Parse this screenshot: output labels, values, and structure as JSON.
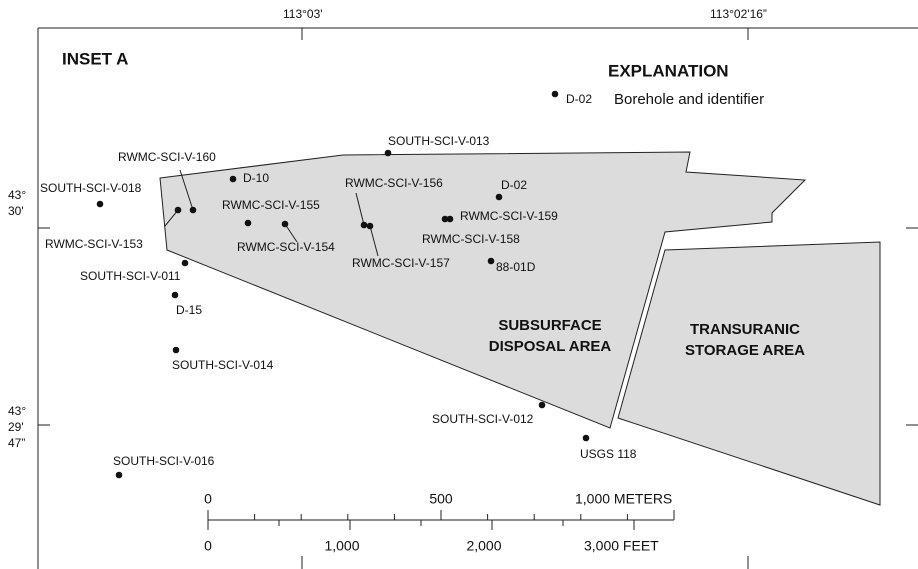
{
  "inset_title": "INSET A",
  "longitudes": [
    "113°03'",
    "113°02'16”"
  ],
  "latitudes": [
    {
      "lines": [
        "43°",
        "30'"
      ]
    },
    {
      "lines": [
        "43°",
        "29'",
        "47”"
      ]
    }
  ],
  "explanation": {
    "title": "EXPLANATION",
    "symbol_label": "D-02",
    "text": "Borehole and identifier"
  },
  "areas": [
    {
      "lines": [
        "SUBSURFACE",
        "DISPOSAL AREA"
      ]
    },
    {
      "lines": [
        "TRANSURANIC",
        "STORAGE AREA"
      ]
    }
  ],
  "boreholes": [
    {
      "label": "SOUTH-SCI-V-013"
    },
    {
      "label": "RWMC-SCI-V-160"
    },
    {
      "label": "D-10"
    },
    {
      "label": "SOUTH-SCI-V-018"
    },
    {
      "label": "RWMC-SCI-V-153"
    },
    {
      "label": "RWMC-SCI-V-155"
    },
    {
      "label": "RWMC-SCI-V-154"
    },
    {
      "label": "RWMC-SCI-V-156"
    },
    {
      "label": "RWMC-SCI-V-157"
    },
    {
      "label": "D-02"
    },
    {
      "label": "RWMC-SCI-V-159"
    },
    {
      "label": "RWMC-SCI-V-158"
    },
    {
      "label": "88-01D"
    },
    {
      "label": "SOUTH-SCI-V-011"
    },
    {
      "label": "D-15"
    },
    {
      "label": "SOUTH-SCI-V-014"
    },
    {
      "label": "SOUTH-SCI-V-012"
    },
    {
      "label": "USGS 118"
    },
    {
      "label": "SOUTH-SCI-V-016"
    }
  ],
  "scale_bar": {
    "meters": [
      "0",
      "500",
      "1,000 METERS"
    ],
    "feet": [
      "0",
      "1,000",
      "2,000",
      "3,000 FEET"
    ]
  }
}
